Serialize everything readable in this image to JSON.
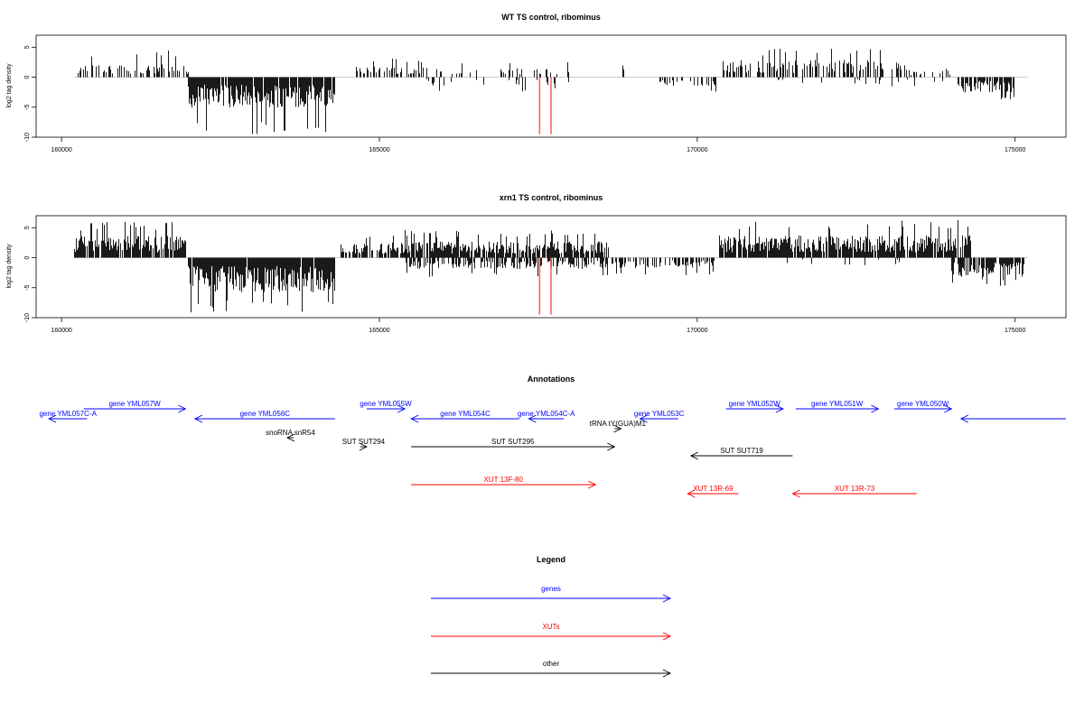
{
  "chart_data": [
    {
      "type": "bar",
      "title": "WT TS control, ribominus",
      "xlabel": "",
      "ylabel": "log2 tag density",
      "xlim": [
        159600,
        175800
      ],
      "ylim": [
        -10,
        7
      ],
      "x_ticks": [
        160000,
        165000,
        170000,
        175000
      ],
      "y_ticks": [
        -10,
        -5,
        0,
        5
      ],
      "baseline_range": [
        160200,
        175200
      ],
      "marker_lines": [
        {
          "x": 167520,
          "y_from": 0,
          "y_to": -9.5
        },
        {
          "x": 167700,
          "y_from": 0,
          "y_to": -9.5
        }
      ],
      "signal_regions": [
        {
          "from": 160250,
          "to": 162000,
          "sign": 1,
          "mean": 1.5,
          "max": 4.5,
          "density": 0.45,
          "seed": 11
        },
        {
          "from": 162000,
          "to": 164300,
          "sign": -1,
          "mean": 3.5,
          "max": 9.5,
          "density": 0.9,
          "seed": 12
        },
        {
          "from": 164600,
          "to": 165700,
          "sign": 1,
          "mean": 1.3,
          "max": 3.2,
          "density": 0.5,
          "seed": 13
        },
        {
          "from": 165700,
          "to": 168000,
          "sign": 1,
          "mean": 1.1,
          "max": 2.6,
          "density": 0.18,
          "seed": 14
        },
        {
          "from": 165700,
          "to": 168000,
          "sign": -1,
          "mean": 1.0,
          "max": 2.4,
          "density": 0.1,
          "seed": 15
        },
        {
          "from": 168830,
          "to": 168850,
          "sign": 1,
          "mean": 3.0,
          "max": 3.2,
          "density": 1.0,
          "seed": 16
        },
        {
          "from": 169400,
          "to": 170300,
          "sign": -1,
          "mean": 1.0,
          "max": 2.8,
          "density": 0.3,
          "seed": 17
        },
        {
          "from": 170350,
          "to": 173300,
          "sign": 1,
          "mean": 2.0,
          "max": 4.8,
          "density": 0.55,
          "seed": 18
        },
        {
          "from": 171000,
          "to": 174200,
          "sign": -1,
          "mean": 0.8,
          "max": 1.8,
          "density": 0.06,
          "seed": 19
        },
        {
          "from": 173300,
          "to": 174000,
          "sign": 1,
          "mean": 1.0,
          "max": 2.0,
          "density": 0.2,
          "seed": 20
        },
        {
          "from": 174100,
          "to": 175000,
          "sign": -1,
          "mean": 1.8,
          "max": 3.8,
          "density": 0.75,
          "seed": 21
        }
      ]
    },
    {
      "type": "bar",
      "title": "xrn1 TS control, ribominus",
      "xlabel": "",
      "ylabel": "log2 tag density",
      "xlim": [
        159600,
        175800
      ],
      "ylim": [
        -10,
        7
      ],
      "x_ticks": [
        160000,
        165000,
        170000,
        175000
      ],
      "y_ticks": [
        -10,
        -5,
        0,
        5
      ],
      "baseline_range": [
        160200,
        175200
      ],
      "marker_lines": [
        {
          "x": 167520,
          "y_from": 0,
          "y_to": -9.5
        },
        {
          "x": 167700,
          "y_from": 0,
          "y_to": -9.5
        }
      ],
      "signal_regions": [
        {
          "from": 160200,
          "to": 161950,
          "sign": 1,
          "mean": 2.5,
          "max": 6.0,
          "density": 0.85,
          "seed": 31
        },
        {
          "from": 162000,
          "to": 164300,
          "sign": -1,
          "mean": 4.0,
          "max": 9.5,
          "density": 0.97,
          "seed": 32
        },
        {
          "from": 164400,
          "to": 165400,
          "sign": 1,
          "mean": 1.8,
          "max": 4.0,
          "density": 0.75,
          "seed": 33
        },
        {
          "from": 165400,
          "to": 168600,
          "sign": 1,
          "mean": 1.9,
          "max": 4.6,
          "density": 0.8,
          "seed": 34
        },
        {
          "from": 165400,
          "to": 168600,
          "sign": -1,
          "mean": 1.3,
          "max": 3.3,
          "density": 0.55,
          "seed": 35
        },
        {
          "from": 168650,
          "to": 170300,
          "sign": -1,
          "mean": 1.2,
          "max": 3.0,
          "density": 0.6,
          "seed": 36
        },
        {
          "from": 170350,
          "to": 174300,
          "sign": 1,
          "mean": 2.6,
          "max": 6.3,
          "density": 0.9,
          "seed": 37
        },
        {
          "from": 170350,
          "to": 174300,
          "sign": -1,
          "mean": 0.8,
          "max": 1.5,
          "density": 0.05,
          "seed": 38
        },
        {
          "from": 174000,
          "to": 175150,
          "sign": -1,
          "mean": 2.2,
          "max": 4.8,
          "density": 0.85,
          "seed": 39
        }
      ]
    }
  ],
  "annotations": {
    "title": "Annotations",
    "features": [
      {
        "label": "gene YML057W",
        "category": "genes",
        "from": 160350,
        "to": 161950,
        "strand": "+",
        "row": 0
      },
      {
        "label": "gene YML057C-A",
        "category": "genes",
        "from": 160400,
        "to": 159800,
        "strand": "-",
        "row": 1
      },
      {
        "label": "gene YML056C",
        "category": "genes",
        "from": 164300,
        "to": 162100,
        "strand": "-",
        "row": 1
      },
      {
        "label": "gene YML055W",
        "category": "genes",
        "from": 164800,
        "to": 165400,
        "strand": "+",
        "row": 0
      },
      {
        "label": "gene YML054C",
        "category": "genes",
        "from": 167200,
        "to": 165500,
        "strand": "-",
        "row": 1
      },
      {
        "label": "gene YML054C-A",
        "category": "genes",
        "from": 167900,
        "to": 167350,
        "strand": "-",
        "row": 1
      },
      {
        "label": "gene YML053C",
        "category": "genes",
        "from": 169700,
        "to": 169100,
        "strand": "-",
        "row": 1
      },
      {
        "label": "gene YML052W",
        "category": "genes",
        "from": 170450,
        "to": 171350,
        "strand": "+",
        "row": 0
      },
      {
        "label": "gene YML051W",
        "category": "genes",
        "from": 171550,
        "to": 172850,
        "strand": "+",
        "row": 0
      },
      {
        "label": "gene YML050W",
        "category": "genes",
        "from": 173100,
        "to": 174000,
        "strand": "+",
        "row": 0
      },
      {
        "label": "",
        "category": "genes",
        "from": 175800,
        "to": 174150,
        "strand": "-",
        "row": 1
      },
      {
        "label": "tRNA tY(GUA)M1",
        "category": "other",
        "from": 168700,
        "to": 168800,
        "strand": "+",
        "row": 2
      },
      {
        "label": "snoRNA snR54",
        "category": "other",
        "from": 163650,
        "to": 163550,
        "strand": "-",
        "row": 3
      },
      {
        "label": "SUT SUT294",
        "category": "other",
        "from": 164700,
        "to": 164800,
        "strand": "+",
        "row": 4
      },
      {
        "label": "SUT SUT295",
        "category": "other",
        "from": 165500,
        "to": 168700,
        "strand": "+",
        "row": 4
      },
      {
        "label": "SUT SUT719",
        "category": "other",
        "from": 171500,
        "to": 169900,
        "strand": "-",
        "row": 5
      },
      {
        "label": "XUT 13F-80",
        "category": "XUTs",
        "from": 165500,
        "to": 168400,
        "strand": "+",
        "row": 6
      },
      {
        "label": "XUT 13R-69",
        "category": "XUTs",
        "from": 170650,
        "to": 169850,
        "strand": "-",
        "row": 7
      },
      {
        "label": "XUT 13R-73",
        "category": "XUTs",
        "from": 173450,
        "to": 171500,
        "strand": "-",
        "row": 7
      }
    ]
  },
  "legend": {
    "title": "Legend",
    "entries": [
      {
        "label": "genes",
        "color": "#0000ff"
      },
      {
        "label": "XUTs",
        "color": "#ff0000"
      },
      {
        "label": "other",
        "color": "#000000"
      }
    ]
  },
  "colors": {
    "genes": "#0000ff",
    "XUTs": "#ff0000",
    "other": "#000000",
    "signal": "#000000",
    "marker": "#ff6666",
    "baseline": "#bbbbbb"
  }
}
